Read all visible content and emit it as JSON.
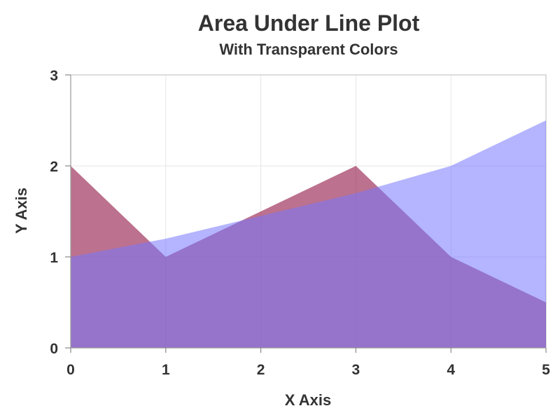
{
  "chart_data": {
    "type": "area",
    "title": "Area Under Line Plot",
    "subtitle": "With Transparent Colors",
    "xlabel": "X Axis",
    "ylabel": "Y Axis",
    "x": [
      0,
      1,
      2,
      3,
      4,
      5
    ],
    "xlim": [
      0,
      5
    ],
    "ylim": [
      0,
      3
    ],
    "xticks": [
      0,
      1,
      2,
      3,
      4,
      5
    ],
    "yticks": [
      0,
      1,
      2,
      3
    ],
    "grid": true,
    "legend": "none",
    "series": [
      {
        "values": [
          2,
          1,
          1.5,
          2,
          1,
          0.5
        ],
        "color": "#8b0a3c",
        "opacity": 0.58
      },
      {
        "values": [
          1,
          1.2,
          1.45,
          1.7,
          2,
          2.5
        ],
        "color": "#7777ff",
        "opacity": 0.55
      }
    ]
  }
}
